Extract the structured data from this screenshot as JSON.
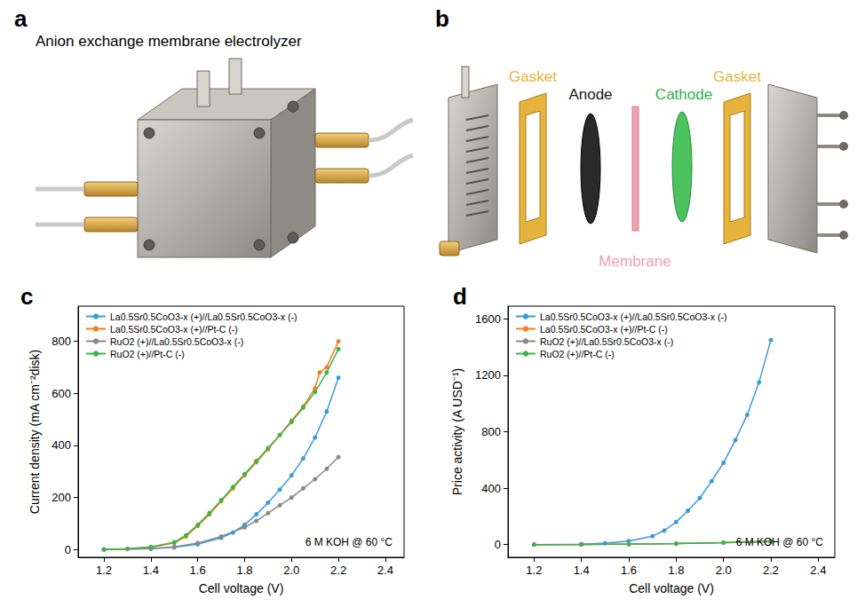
{
  "panels": {
    "a": {
      "letter": "a",
      "title": "Anion exchange membrane electrolyzer"
    },
    "b": {
      "letter": "b",
      "labels": [
        {
          "text": "Gasket",
          "color": "#e6b43c"
        },
        {
          "text": "Anode",
          "color": "#1a1a1a"
        },
        {
          "text": "Membrane",
          "color": "#f2a0b4"
        },
        {
          "text": "Cathode",
          "color": "#2fb34a"
        },
        {
          "text": "Gasket",
          "color": "#e6b43c"
        }
      ]
    }
  },
  "chart_data": [
    {
      "type": "line",
      "panel_label": "c",
      "x_label": "Cell voltage (V)",
      "y_label": "Current density (mA cm⁻²disk)",
      "annotation": "6 M KOH @ 60 °C",
      "xlim": [
        1.09,
        2.48
      ],
      "xticks": [
        1.2,
        1.4,
        1.6,
        1.8,
        {
          "value": 2,
          "label": "2.0"
        },
        2.2,
        2.4
      ],
      "ylim": [
        -30,
        935
      ],
      "yticks": [
        0,
        200,
        400,
        600,
        800
      ],
      "grid": false,
      "legend": "upper left",
      "marker": "circle",
      "series": [
        {
          "name": "La0.5Sr0.5CoO3-x (+)//La0.5Sr0.5CoO3-x (-)",
          "color": "#3a9ad9",
          "x": [
            1.2,
            1.4,
            1.5,
            1.6,
            1.7,
            1.75,
            1.8,
            1.85,
            1.9,
            1.95,
            2.0,
            2.05,
            2.1,
            2.15,
            2.2
          ],
          "values": [
            0,
            3,
            8,
            20,
            45,
            65,
            95,
            135,
            180,
            230,
            285,
            350,
            430,
            530,
            660
          ]
        },
        {
          "name": "La0.5Sr0.5CoO3-x (+)//Pt-C (-)",
          "color": "#f57f20",
          "x": [
            1.2,
            1.3,
            1.4,
            1.5,
            1.55,
            1.6,
            1.65,
            1.7,
            1.75,
            1.8,
            1.85,
            1.9,
            1.95,
            2.0,
            2.05,
            2.1,
            2.12,
            2.15,
            2.2
          ],
          "values": [
            0,
            2,
            8,
            25,
            50,
            90,
            135,
            185,
            235,
            285,
            335,
            385,
            440,
            495,
            550,
            620,
            680,
            700,
            800
          ]
        },
        {
          "name": "RuO2 (+)//La0.5Sr0.5CoO3-x (-)",
          "color": "#8a8a8a",
          "x": [
            1.2,
            1.4,
            1.5,
            1.6,
            1.7,
            1.8,
            1.85,
            1.9,
            1.95,
            2.0,
            2.05,
            2.1,
            2.15,
            2.2
          ],
          "values": [
            0,
            3,
            10,
            25,
            50,
            85,
            110,
            140,
            170,
            200,
            235,
            270,
            310,
            355
          ]
        },
        {
          "name": "RuO2 (+)//Pt-C (-)",
          "color": "#3cb44b",
          "x": [
            1.2,
            1.3,
            1.4,
            1.5,
            1.55,
            1.6,
            1.65,
            1.7,
            1.75,
            1.8,
            1.85,
            1.9,
            1.95,
            2.0,
            2.05,
            2.1,
            2.15,
            2.2
          ],
          "values": [
            0,
            3,
            10,
            28,
            55,
            95,
            140,
            190,
            240,
            290,
            340,
            390,
            440,
            490,
            545,
            605,
            680,
            770
          ]
        }
      ]
    },
    {
      "type": "line",
      "panel_label": "d",
      "x_label": "Cell voltage (V)",
      "y_label": "Price activity (A USD⁻¹)",
      "annotation": "6 M KOH @ 60 °C",
      "xlim": [
        1.09,
        2.47
      ],
      "xticks": [
        1.2,
        1.4,
        1.6,
        1.8,
        {
          "value": 2,
          "label": "2.0"
        },
        2.2,
        2.4
      ],
      "ylim": [
        -90,
        1690
      ],
      "yticks": [
        0,
        400,
        800,
        1200,
        1600
      ],
      "grid": false,
      "legend": "upper left",
      "marker": "circle",
      "series": [
        {
          "name": "La0.5Sr0.5CoO3-x (+)//La0.5Sr0.5CoO3-x (-)",
          "color": "#3a9ad9",
          "x": [
            1.2,
            1.4,
            1.5,
            1.6,
            1.7,
            1.75,
            1.8,
            1.85,
            1.9,
            1.95,
            2.0,
            2.05,
            2.1,
            2.15,
            2.2
          ],
          "values": [
            0,
            3,
            10,
            25,
            60,
            100,
            160,
            240,
            330,
            450,
            580,
            740,
            920,
            1150,
            1450
          ]
        },
        {
          "name": "La0.5Sr0.5CoO3-x (+)//Pt-C (-)",
          "color": "#f57f20",
          "x": [
            1.2,
            1.4,
            1.6,
            1.8,
            2.0,
            2.2
          ],
          "values": [
            0,
            1,
            4,
            8,
            15,
            25
          ]
        },
        {
          "name": "RuO2 (+)//La0.5Sr0.5CoO3-x (-)",
          "color": "#8a8a8a",
          "x": [
            1.2,
            1.4,
            1.6,
            1.8,
            2.0,
            2.2
          ],
          "values": [
            0,
            1,
            3,
            7,
            13,
            20
          ]
        },
        {
          "name": "RuO2 (+)//Pt-C (-)",
          "color": "#3cb44b",
          "x": [
            1.2,
            1.4,
            1.6,
            1.8,
            2.0,
            2.2
          ],
          "values": [
            0,
            1,
            4,
            8,
            14,
            22
          ]
        }
      ]
    }
  ]
}
